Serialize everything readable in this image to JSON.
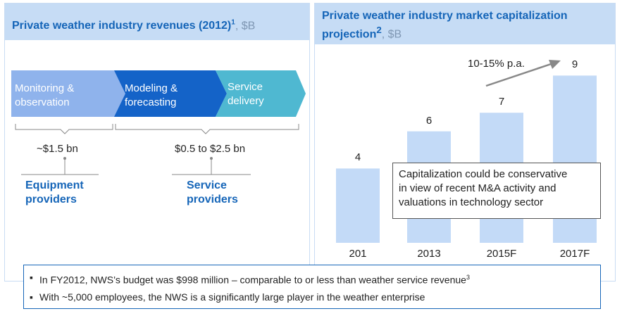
{
  "left_panel": {
    "title": "Private weather industry revenues (2012)",
    "title_sup": "1",
    "unit": ", $B",
    "chevrons": [
      {
        "line1": "Monitoring &",
        "line2": "observation",
        "color": "#8fb3ec"
      },
      {
        "line1": "Modeling &",
        "line2": "forecasting",
        "color": "#1463c8"
      },
      {
        "line1": "Service",
        "line2": "delivery",
        "color": "#4fb8d1"
      }
    ],
    "segments": [
      {
        "value": "~$1.5 bn",
        "provider_line1": "Equipment",
        "provider_line2": "providers"
      },
      {
        "value": "$0.5 to $2.5 bn",
        "provider_line1": "Service",
        "provider_line2": "providers"
      }
    ]
  },
  "right_panel": {
    "title_line1": "Private weather industry market capitalization",
    "title_line2": "projection",
    "title_sup": "2",
    "unit": ", $B"
  },
  "chart_data": {
    "type": "bar",
    "title": "Private weather industry market capitalization projection, $B",
    "categories": [
      "201",
      "2013",
      "2015F",
      "2017F"
    ],
    "values": [
      4,
      6,
      7,
      9
    ],
    "ylim": [
      0,
      10
    ],
    "bar_color": "#c3daf7",
    "grid": false,
    "annotation": "10-15% p.a.",
    "callout": [
      "Capitalization could be conservative",
      "in view of recent M&A activity and",
      "valuations in technology sector"
    ]
  },
  "notes": [
    {
      "text": "In FY2012, NWS’s budget was $998 million – comparable to or less than weather service revenue",
      "sup": "3"
    },
    {
      "text": "With ~5,000 employees, the NWS is a significantly large player in the weather enterprise",
      "sup": ""
    }
  ]
}
